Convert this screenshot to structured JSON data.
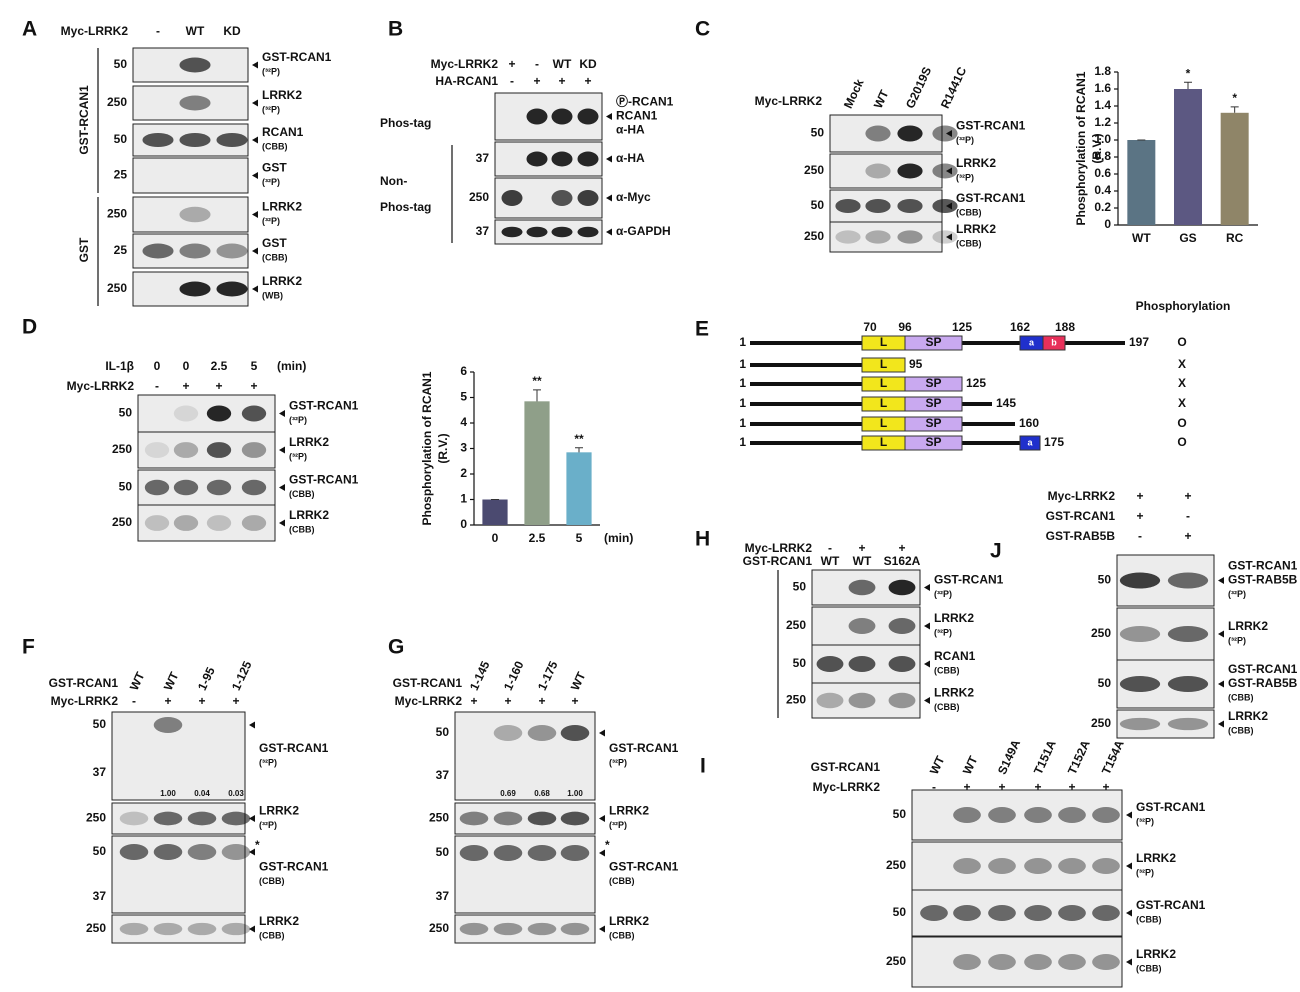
{
  "chart_data": [
    {
      "type": "bar",
      "ylabel": [
        "Phosphorylation of RCAN1",
        "(R.V.)"
      ],
      "categories": [
        "WT",
        "GS",
        "RC"
      ],
      "values": [
        1.0,
        1.6,
        1.32
      ],
      "errors": [
        0,
        0.08,
        0.07
      ],
      "colors": [
        "#5b7484",
        "#5c5882",
        "#8f8568"
      ],
      "significance": [
        null,
        "*",
        "*"
      ],
      "ylim": [
        0,
        1.8
      ],
      "yticks": [
        0,
        0.2,
        0.4,
        0.6,
        0.8,
        {
          "value": 1,
          "label": "1.0"
        },
        1.2,
        1.4,
        1.6,
        1.8
      ]
    },
    {
      "type": "bar",
      "ylabel": [
        "Phosphorylation of RCAN1",
        "(R.V.)"
      ],
      "xlabel": "(min)",
      "categories": [
        "0",
        "2.5",
        "5"
      ],
      "values": [
        1,
        4.85,
        2.85
      ],
      "errors": [
        0,
        0.45,
        0.18
      ],
      "colors": [
        "#4b4a70",
        "#8f9f89",
        "#6aafc9"
      ],
      "significance": [
        null,
        "**",
        "**"
      ],
      "ylim": [
        0,
        6
      ],
      "yticks": [
        0,
        1,
        2,
        3,
        4,
        5,
        6
      ]
    }
  ],
  "panels": {
    "A": {
      "label": "A",
      "headers": [
        {
          "name": "Myc-LRRK2",
          "lanes": [
            "-",
            "WT",
            "KD"
          ]
        }
      ],
      "sides": [
        "GST-RCAN1",
        "GST"
      ],
      "rows": [
        {
          "markers": [
            "50"
          ],
          "labels": [
            "GST-RCAN1",
            "(³²P)"
          ]
        },
        {
          "markers": [
            "250"
          ],
          "labels": [
            "LRRK2",
            "(³²P)"
          ]
        },
        {
          "markers": [
            "50"
          ],
          "labels": [
            "RCAN1",
            "(CBB)"
          ]
        },
        {
          "markers": [
            "25"
          ],
          "labels": [
            "GST",
            "(³²P)"
          ]
        },
        {
          "markers": [
            "250"
          ],
          "labels": [
            "LRRK2",
            "(³²P)"
          ]
        },
        {
          "markers": [
            "25"
          ],
          "labels": [
            "GST",
            "(CBB)"
          ]
        },
        {
          "markers": [
            "250"
          ],
          "labels": [
            "LRRK2",
            "(WB)"
          ]
        }
      ]
    },
    "B": {
      "label": "B",
      "headers": [
        {
          "name": "Myc-LRRK2",
          "lanes": [
            "+",
            "-",
            "WT",
            "KD"
          ]
        },
        {
          "name": "HA-RCAN1",
          "lanes": [
            "-",
            "+",
            "+",
            "+"
          ]
        }
      ],
      "sides": [
        "Phos-tag",
        "Non-",
        "Phos-tag"
      ],
      "rows": [
        {
          "labels": [
            "Ⓟ-RCAN1",
            "RCAN1",
            "α-HA"
          ]
        },
        {
          "markers": [
            "37"
          ],
          "labels": [
            "α-HA"
          ]
        },
        {
          "markers": [
            "250"
          ],
          "labels": [
            "α-Myc"
          ]
        },
        {
          "markers": [
            "37"
          ],
          "labels": [
            "α-GAPDH"
          ]
        }
      ]
    },
    "C": {
      "label": "C",
      "headers": [
        {
          "name": "Myc-LRRK2",
          "lanes": [
            "Mock",
            "WT",
            "G2019S",
            "R1441C"
          ]
        }
      ],
      "rows": [
        {
          "markers": [
            "50"
          ],
          "labels": [
            "GST-RCAN1",
            "(³²P)"
          ]
        },
        {
          "markers": [
            "250"
          ],
          "labels": [
            "LRRK2",
            "(³²P)"
          ]
        },
        {
          "markers": [
            "50"
          ],
          "labels": [
            "GST-RCAN1",
            "(CBB)"
          ]
        },
        {
          "markers": [
            "250"
          ],
          "labels": [
            "LRRK2",
            "(CBB)"
          ]
        }
      ]
    },
    "D": {
      "label": "D",
      "headers": [
        {
          "name": "IL-1β",
          "lanes": [
            "0",
            "0",
            "2.5",
            "5"
          ],
          "unit": "(min)"
        },
        {
          "name": "Myc-LRRK2",
          "lanes": [
            "-",
            "+",
            "+",
            "+"
          ]
        }
      ],
      "rows": [
        {
          "markers": [
            "50"
          ],
          "labels": [
            "GST-RCAN1",
            "(³²P)"
          ]
        },
        {
          "markers": [
            "250"
          ],
          "labels": [
            "LRRK2",
            "(³²P)"
          ]
        },
        {
          "markers": [
            "50"
          ],
          "labels": [
            "GST-RCAN1",
            "(CBB)"
          ]
        },
        {
          "markers": [
            "250"
          ],
          "labels": [
            "LRRK2",
            "(CBB)"
          ]
        }
      ]
    },
    "F": {
      "label": "F",
      "headers": [
        {
          "name": "GST-RCAN1",
          "lanes": [
            "WT",
            "WT",
            "1-95",
            "1-125"
          ]
        },
        {
          "name": "Myc-LRRK2",
          "lanes": [
            "-",
            "+",
            "+",
            "+"
          ]
        }
      ],
      "rows": [
        {
          "markers": [
            "50",
            "37"
          ],
          "labels": [
            "GST-RCAN1",
            "(³²P)"
          ],
          "quant": [
            null,
            "1.00",
            "0.04",
            "0.03"
          ]
        },
        {
          "markers": [
            "250"
          ],
          "labels": [
            "LRRK2",
            "(³²P)"
          ]
        },
        {
          "markers": [
            "50",
            "37"
          ],
          "labels": [
            "GST-RCAN1",
            "(CBB)"
          ],
          "note": "*"
        },
        {
          "markers": [
            "250"
          ],
          "labels": [
            "LRRK2",
            "(CBB)"
          ]
        }
      ]
    },
    "G": {
      "label": "G",
      "headers": [
        {
          "name": "GST-RCAN1",
          "lanes": [
            "1-145",
            "1-160",
            "1-175",
            "WT"
          ]
        },
        {
          "name": "Myc-LRRK2",
          "lanes": [
            "+",
            "+",
            "+",
            "+"
          ]
        }
      ],
      "rows": [
        {
          "markers": [
            "50",
            "37"
          ],
          "labels": [
            "GST-RCAN1",
            "(³²P)"
          ],
          "quant": [
            null,
            "0.69",
            "0.68",
            "1.00"
          ]
        },
        {
          "markers": [
            "250"
          ],
          "labels": [
            "LRRK2",
            "(³²P)"
          ]
        },
        {
          "markers": [
            "50",
            "37"
          ],
          "labels": [
            "GST-RCAN1",
            "(CBB)"
          ],
          "note": "*"
        },
        {
          "markers": [
            "250"
          ],
          "labels": [
            "LRRK2",
            "(CBB)"
          ]
        }
      ]
    },
    "H": {
      "label": "H",
      "headers": [
        {
          "name": "Myc-LRRK2",
          "lanes": [
            "-",
            "+",
            "+"
          ]
        },
        {
          "name": "GST-RCAN1",
          "lanes": [
            "WT",
            "WT",
            "S162A"
          ]
        }
      ],
      "rows": [
        {
          "markers": [
            "50"
          ],
          "labels": [
            "GST-RCAN1",
            "(³²P)"
          ]
        },
        {
          "markers": [
            "250"
          ],
          "labels": [
            "LRRK2",
            "(³²P)"
          ]
        },
        {
          "markers": [
            "50"
          ],
          "labels": [
            "RCAN1",
            "(CBB)"
          ]
        },
        {
          "markers": [
            "250"
          ],
          "labels": [
            "LRRK2",
            "(CBB)"
          ]
        }
      ]
    },
    "J": {
      "label": "J",
      "headers": [
        {
          "name": "Myc-LRRK2",
          "lanes": [
            "+",
            "+"
          ]
        },
        {
          "name": "GST-RCAN1",
          "lanes": [
            "+",
            "-"
          ]
        },
        {
          "name": "GST-RAB5B",
          "lanes": [
            "-",
            "+"
          ]
        }
      ],
      "rows": [
        {
          "markers": [
            "50"
          ],
          "labels": [
            "GST-RCAN1",
            "GST-RAB5B",
            "(³²P)"
          ]
        },
        {
          "markers": [
            "250"
          ],
          "labels": [
            "LRRK2",
            "(³²P)"
          ]
        },
        {
          "markers": [
            "50"
          ],
          "labels": [
            "GST-RCAN1",
            "GST-RAB5B",
            "(CBB)"
          ]
        },
        {
          "markers": [
            "250"
          ],
          "labels": [
            "LRRK2",
            "(CBB)"
          ]
        }
      ]
    },
    "I": {
      "label": "I",
      "headers": [
        {
          "name": "GST-RCAN1",
          "lanes": [
            "WT",
            "WT",
            "S149A",
            "T151A",
            "T152A",
            "T154A"
          ]
        },
        {
          "name": "Myc-LRRK2",
          "lanes": [
            "-",
            "+",
            "+",
            "+",
            "+",
            "+"
          ]
        }
      ],
      "rows": [
        {
          "markers": [
            "50"
          ],
          "labels": [
            "GST-RCAN1",
            "(³²P)"
          ]
        },
        {
          "markers": [
            "250"
          ],
          "labels": [
            "LRRK2",
            "(³²P)"
          ]
        },
        {
          "markers": [
            "50"
          ],
          "labels": [
            "GST-RCAN1",
            "(CBB)"
          ]
        },
        {
          "markers": [
            "250"
          ],
          "labels": [
            "LRRK2",
            "(CBB)"
          ]
        }
      ]
    }
  },
  "diagram": {
    "label": "E",
    "title": "Phosphorylation",
    "positions": [
      "70",
      "96",
      "125",
      "162",
      "188"
    ],
    "domains": [
      "L",
      "SP",
      "a",
      "b"
    ],
    "constructs": [
      {
        "start": "1",
        "end": "197",
        "result": "O"
      },
      {
        "start": "1",
        "end": "95",
        "result": "X"
      },
      {
        "start": "1",
        "end": "125",
        "result": "X"
      },
      {
        "start": "1",
        "end": "145",
        "result": "X"
      },
      {
        "start": "1",
        "end": "160",
        "result": "O"
      },
      {
        "start": "1",
        "end": "175",
        "result": "O"
      }
    ]
  }
}
